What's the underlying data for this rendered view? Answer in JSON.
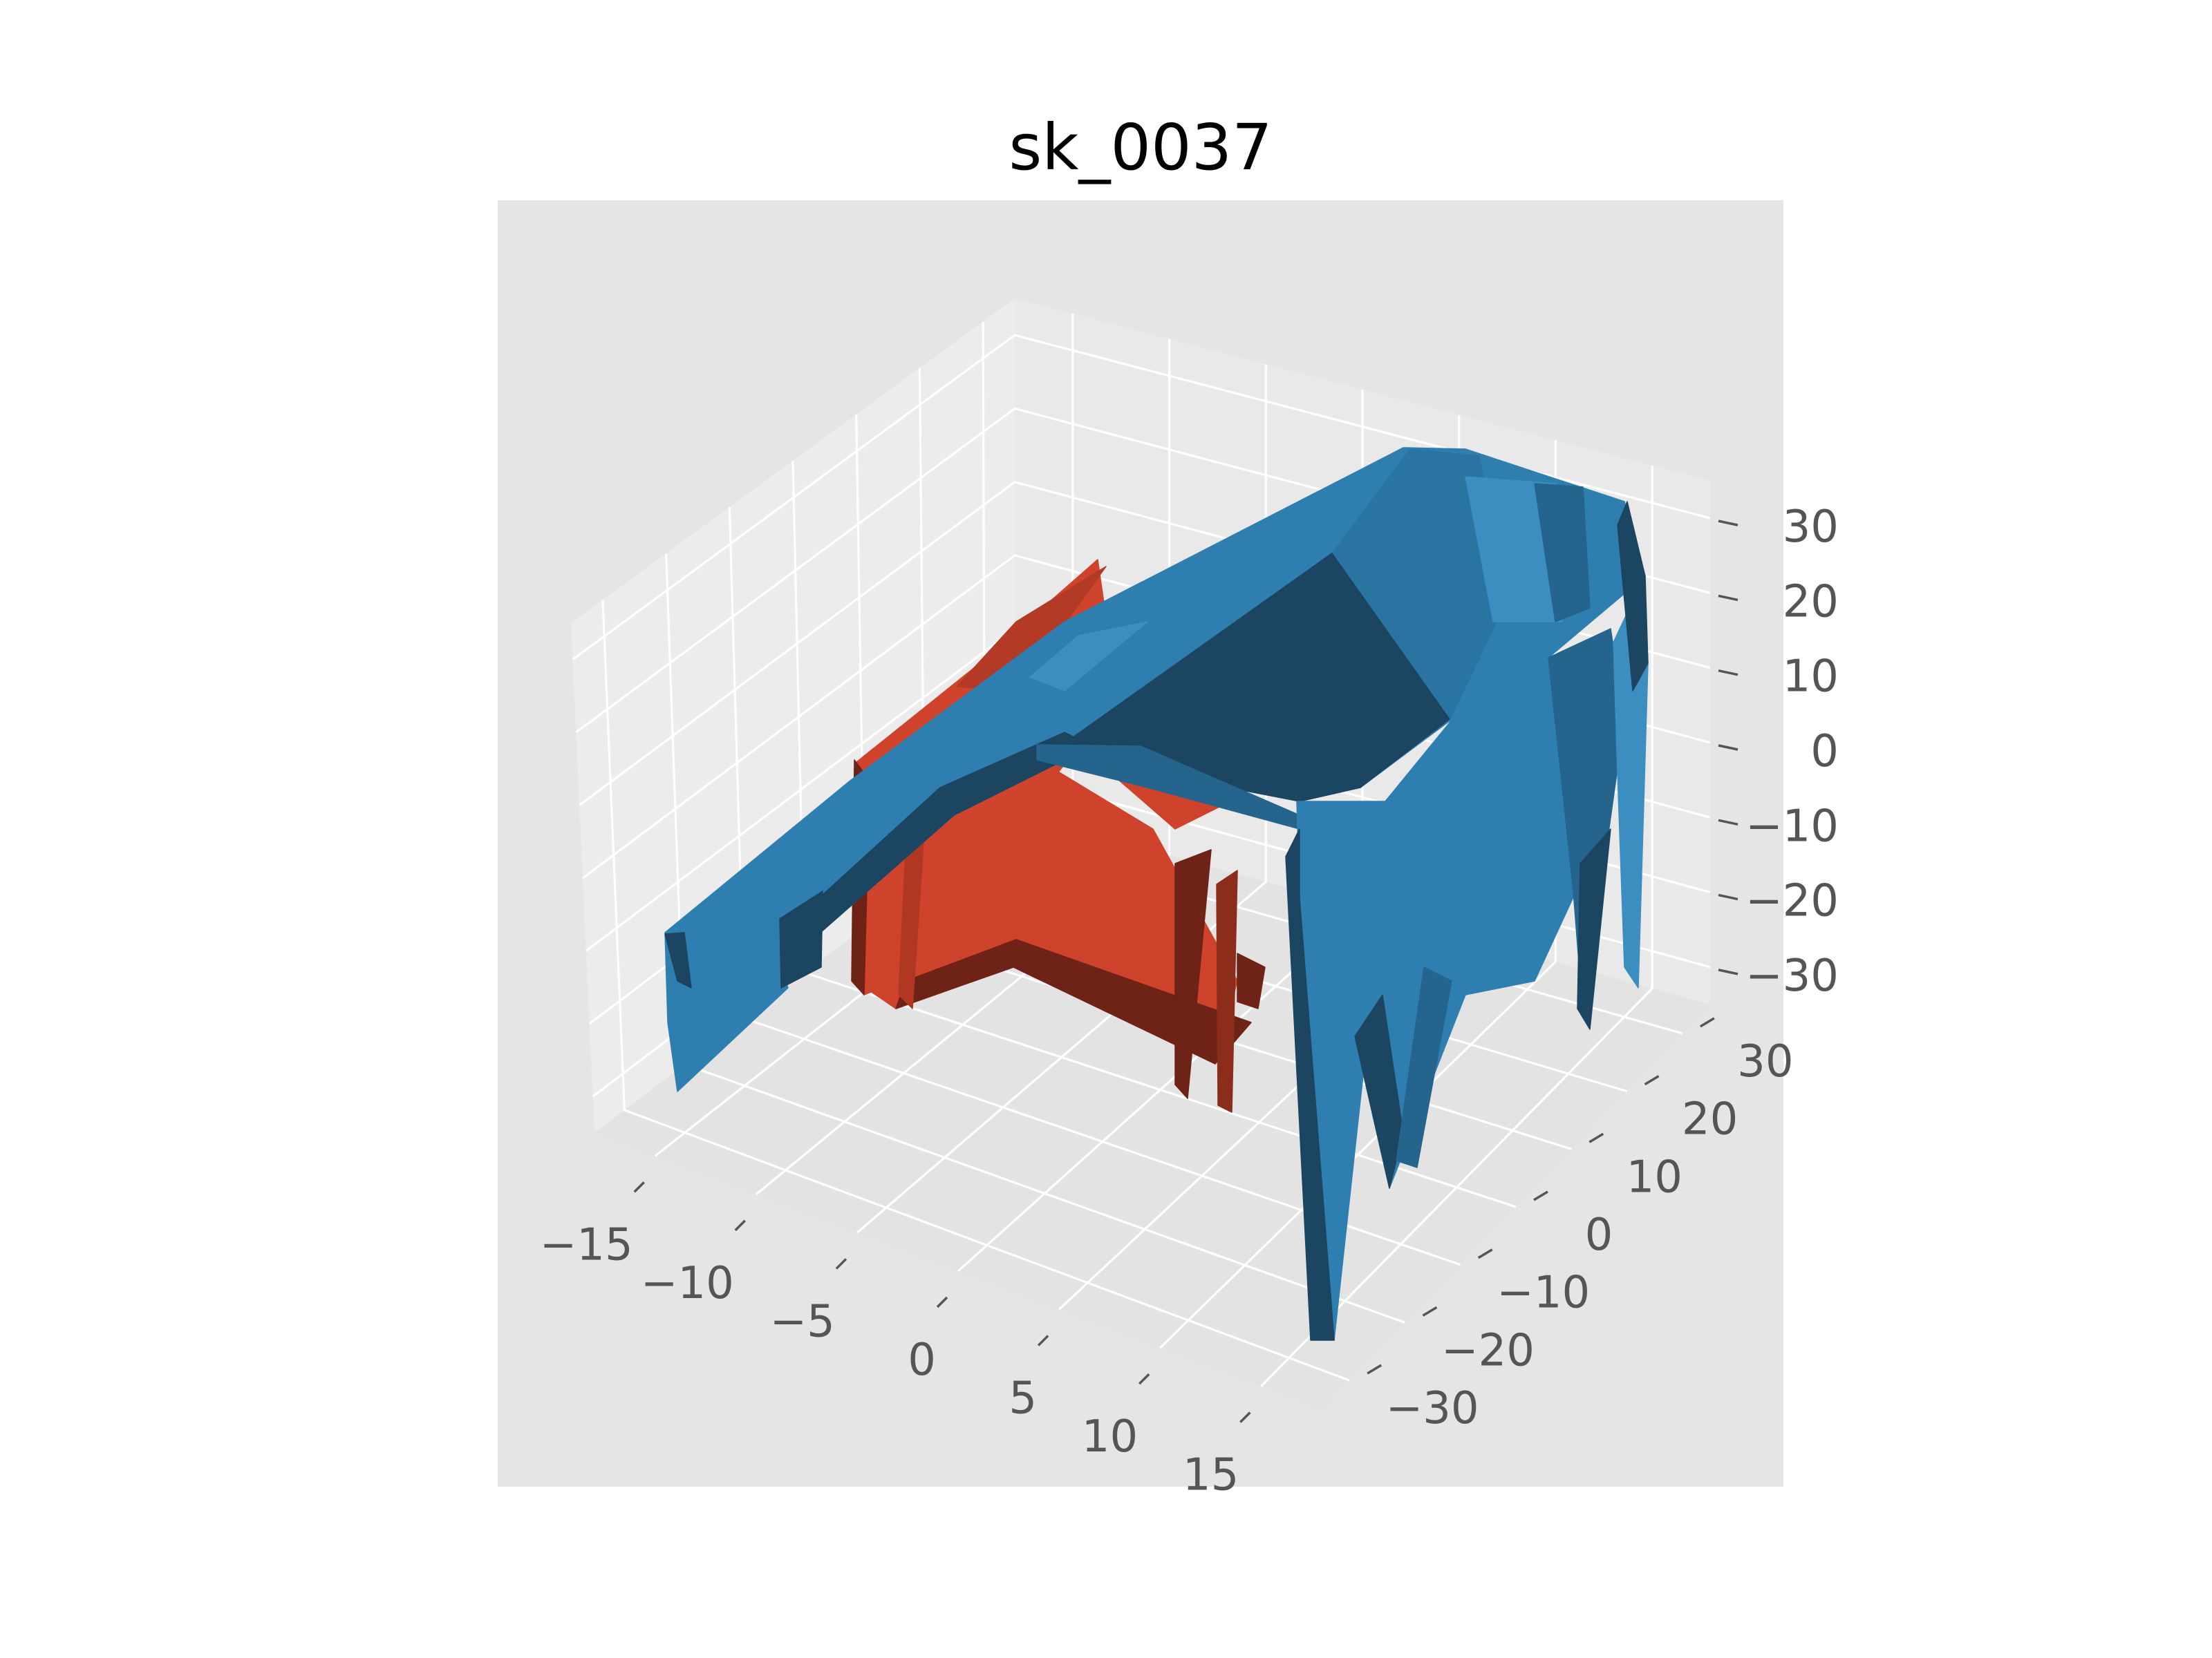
{
  "chart_data": {
    "type": "surface3d",
    "title": "sk_0037",
    "xlabel": "",
    "ylabel": "",
    "zlabel": "",
    "x_ticks": [
      -15,
      -10,
      -5,
      0,
      5,
      10,
      15
    ],
    "y_ticks": [
      -30,
      -20,
      -10,
      0,
      10,
      20,
      30
    ],
    "z_ticks": [
      -30,
      -20,
      -10,
      0,
      10,
      20,
      30
    ],
    "xlim": [
      -18,
      18
    ],
    "ylim": [
      -35,
      35
    ],
    "zlim": [
      -35,
      35
    ],
    "grid": true,
    "style": "ggplot",
    "colors": {
      "figure_background": "#ffffff",
      "axes_background": "#e5e5e5",
      "pane": "#ebebeb",
      "grid": "#ffffff",
      "tick_text": "#555555",
      "blue_surface": "#2e7fb0",
      "blue_dark": "#1b4560",
      "red_surface": "#cf432c",
      "red_dark": "#6e2316"
    },
    "series": [
      {
        "color": "#2e7fb0",
        "kind": "outer-shell",
        "description": "seat-and-back shaped surface with legs"
      },
      {
        "color": "#cf432c",
        "kind": "inner-support",
        "description": "inner frame surface"
      }
    ]
  }
}
